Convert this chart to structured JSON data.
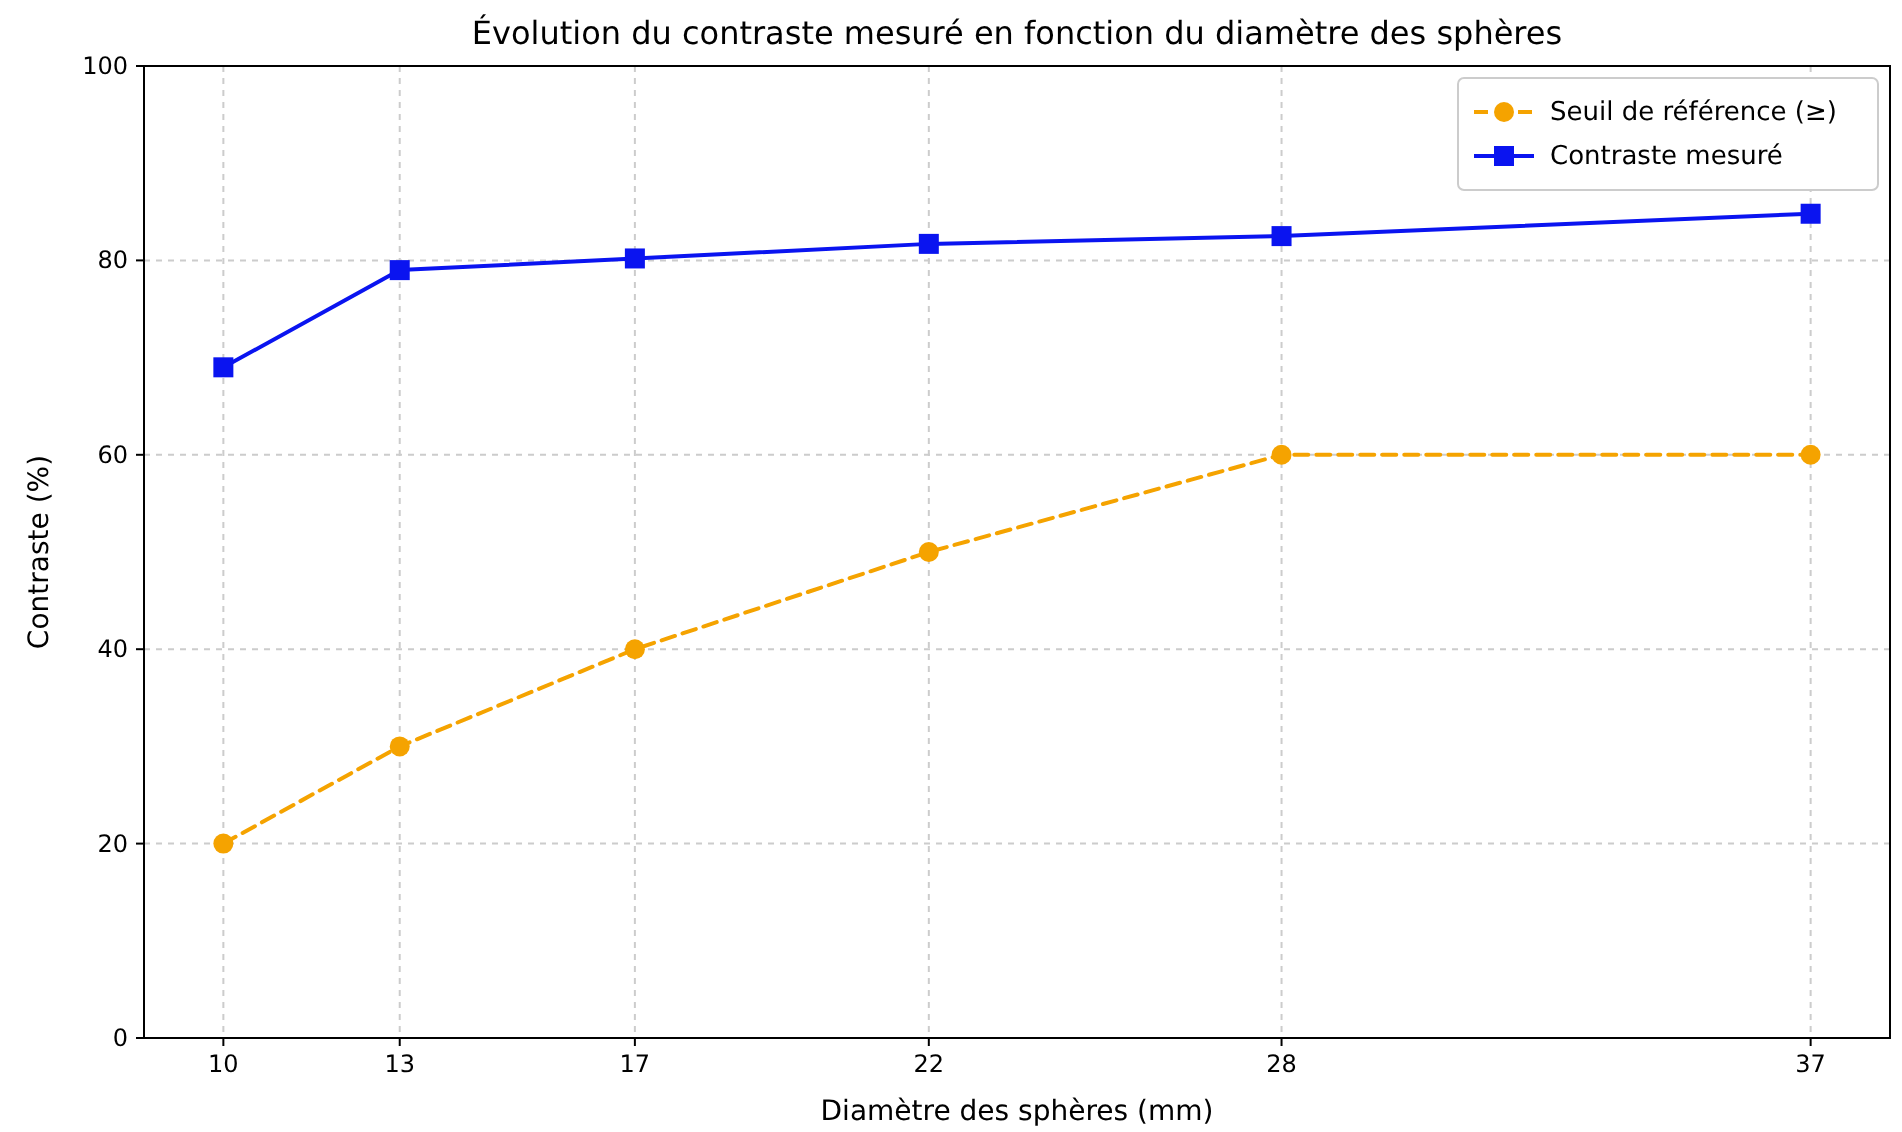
{
  "chart_data": {
    "type": "line",
    "title": "Évolution du contraste mesuré en fonction du diamètre des sphères",
    "xlabel": "Diamètre des sphères (mm)",
    "ylabel": "Contraste (%)",
    "x": [
      10,
      13,
      17,
      22,
      28,
      37
    ],
    "series": [
      {
        "name": "Seuil de référence (≥)",
        "color": "#f5a300",
        "values": [
          20,
          30,
          40,
          50,
          60,
          60
        ],
        "marker": "circle",
        "line_style": "dashed"
      },
      {
        "name": "Contraste mesuré",
        "color": "#0a14f0",
        "values": [
          69,
          79,
          80.2,
          81.7,
          82.5,
          84.8
        ],
        "marker": "square",
        "line_style": "solid"
      }
    ],
    "xlim": [
      8.65,
      38.35
    ],
    "xticks": [
      10,
      13,
      17,
      22,
      28,
      37
    ],
    "ylim": [
      0,
      100
    ],
    "yticks": [
      0,
      20,
      40,
      60,
      80,
      100
    ],
    "grid": true,
    "legend": "top right"
  }
}
